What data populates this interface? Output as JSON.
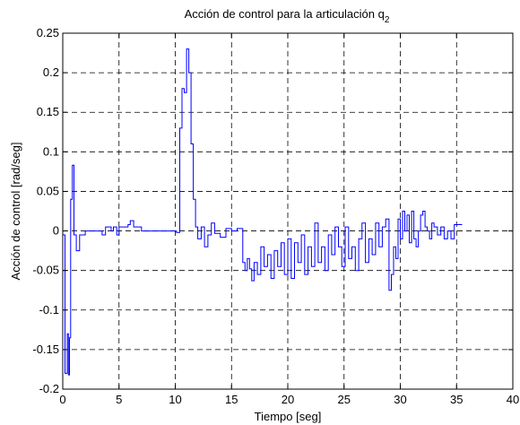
{
  "chart_data": {
    "type": "line",
    "title": "Acción de control para la articulación q",
    "title_subscript": "2",
    "xlabel": "Tiempo [seg]",
    "ylabel": "Acción de control [rad/seg]",
    "xlim": [
      0,
      40
    ],
    "ylim": [
      -0.2,
      0.25
    ],
    "xticks": [
      0,
      5,
      10,
      15,
      20,
      25,
      30,
      35,
      40
    ],
    "yticks": [
      -0.2,
      -0.15,
      -0.1,
      -0.05,
      0,
      0.05,
      0.1,
      0.15,
      0.2,
      0.25
    ],
    "xtick_labels": [
      "0",
      "5",
      "10",
      "15",
      "20",
      "25",
      "30",
      "35",
      "40"
    ],
    "ytick_labels": [
      "-0.2",
      "-0.15",
      "-0.1",
      "-0.05",
      "0",
      "0.05",
      "0.1",
      "0.15",
      "0.2",
      "0.25"
    ],
    "grid": true,
    "grid_style": "dashed",
    "line_color": "#0000ff",
    "series": [
      {
        "step": true,
        "x": [
          0,
          0.2,
          0.4,
          0.5,
          0.6,
          0.7,
          0.85,
          1.0,
          1.2,
          1.5,
          2.0,
          2.3,
          2.6,
          3.0,
          3.3,
          3.5,
          3.8,
          4.0,
          4.3,
          4.5,
          4.8,
          5.0,
          5.5,
          5.8,
          6.0,
          6.3,
          6.6,
          7.0,
          7.5,
          8.0,
          9.0,
          9.5,
          9.8,
          10.1,
          10.4,
          10.6,
          10.8,
          11.0,
          11.2,
          11.4,
          11.6,
          11.8,
          12.0,
          12.3,
          12.6,
          12.9,
          13.2,
          13.5,
          14.0,
          14.5,
          15.0,
          15.5,
          16.0,
          16.2,
          16.4,
          16.6,
          16.8,
          17.0,
          17.3,
          17.6,
          17.9,
          18.2,
          18.5,
          18.8,
          19.1,
          19.4,
          19.7,
          20.0,
          20.3,
          20.6,
          20.9,
          21.2,
          21.5,
          21.8,
          22.1,
          22.4,
          22.7,
          23.0,
          23.3,
          23.6,
          23.9,
          24.2,
          24.5,
          24.8,
          25.1,
          25.4,
          25.7,
          26.0,
          26.3,
          26.6,
          26.9,
          27.2,
          27.5,
          27.8,
          28.1,
          28.4,
          28.7,
          29.0,
          29.2,
          29.4,
          29.6,
          29.8,
          30.0,
          30.2,
          30.4,
          30.6,
          30.8,
          31.0,
          31.2,
          31.4,
          31.6,
          31.8,
          32.0,
          32.2,
          32.4,
          32.6,
          32.8,
          33.0,
          33.3,
          33.6,
          33.9,
          34.2,
          34.5,
          34.8,
          35.0,
          35.5
        ],
        "y": [
          -0.005,
          -0.18,
          -0.13,
          -0.182,
          -0.135,
          0.04,
          0.083,
          -0.005,
          -0.025,
          -0.005,
          0,
          0,
          0,
          0,
          0,
          -0.005,
          0.005,
          0.005,
          0,
          0.005,
          -0.005,
          0.005,
          0.005,
          0.008,
          0.013,
          0.005,
          0.005,
          0,
          0,
          0,
          0,
          0,
          0,
          -0.002,
          0.13,
          0.18,
          0.175,
          0.23,
          0.2,
          0.11,
          0.04,
          0.005,
          -0.01,
          0.005,
          -0.02,
          -0.005,
          0.01,
          -0.003,
          -0.008,
          0.003,
          0,
          0.003,
          -0.04,
          -0.05,
          -0.035,
          -0.048,
          -0.063,
          -0.04,
          -0.055,
          -0.02,
          -0.045,
          -0.03,
          -0.06,
          -0.025,
          -0.045,
          -0.015,
          -0.055,
          -0.01,
          -0.06,
          -0.015,
          -0.04,
          -0.005,
          -0.055,
          -0.02,
          -0.045,
          0.01,
          -0.04,
          -0.02,
          -0.05,
          -0.005,
          -0.03,
          0.005,
          -0.02,
          -0.045,
          0.005,
          -0.035,
          -0.02,
          -0.05,
          -0.01,
          0.01,
          -0.04,
          -0.01,
          -0.03,
          0.01,
          -0.02,
          0.005,
          0.015,
          -0.075,
          -0.055,
          -0.02,
          -0.035,
          0.015,
          -0.01,
          0.025,
          0,
          0.02,
          -0.015,
          0.025,
          -0.01,
          -0.02,
          0,
          0.02,
          0.025,
          0.005,
          0,
          -0.01,
          0.01,
          0.005,
          -0.005,
          0.005,
          -0.01,
          0,
          -0.01,
          0.008,
          0.008,
          0.008
        ]
      }
    ]
  }
}
